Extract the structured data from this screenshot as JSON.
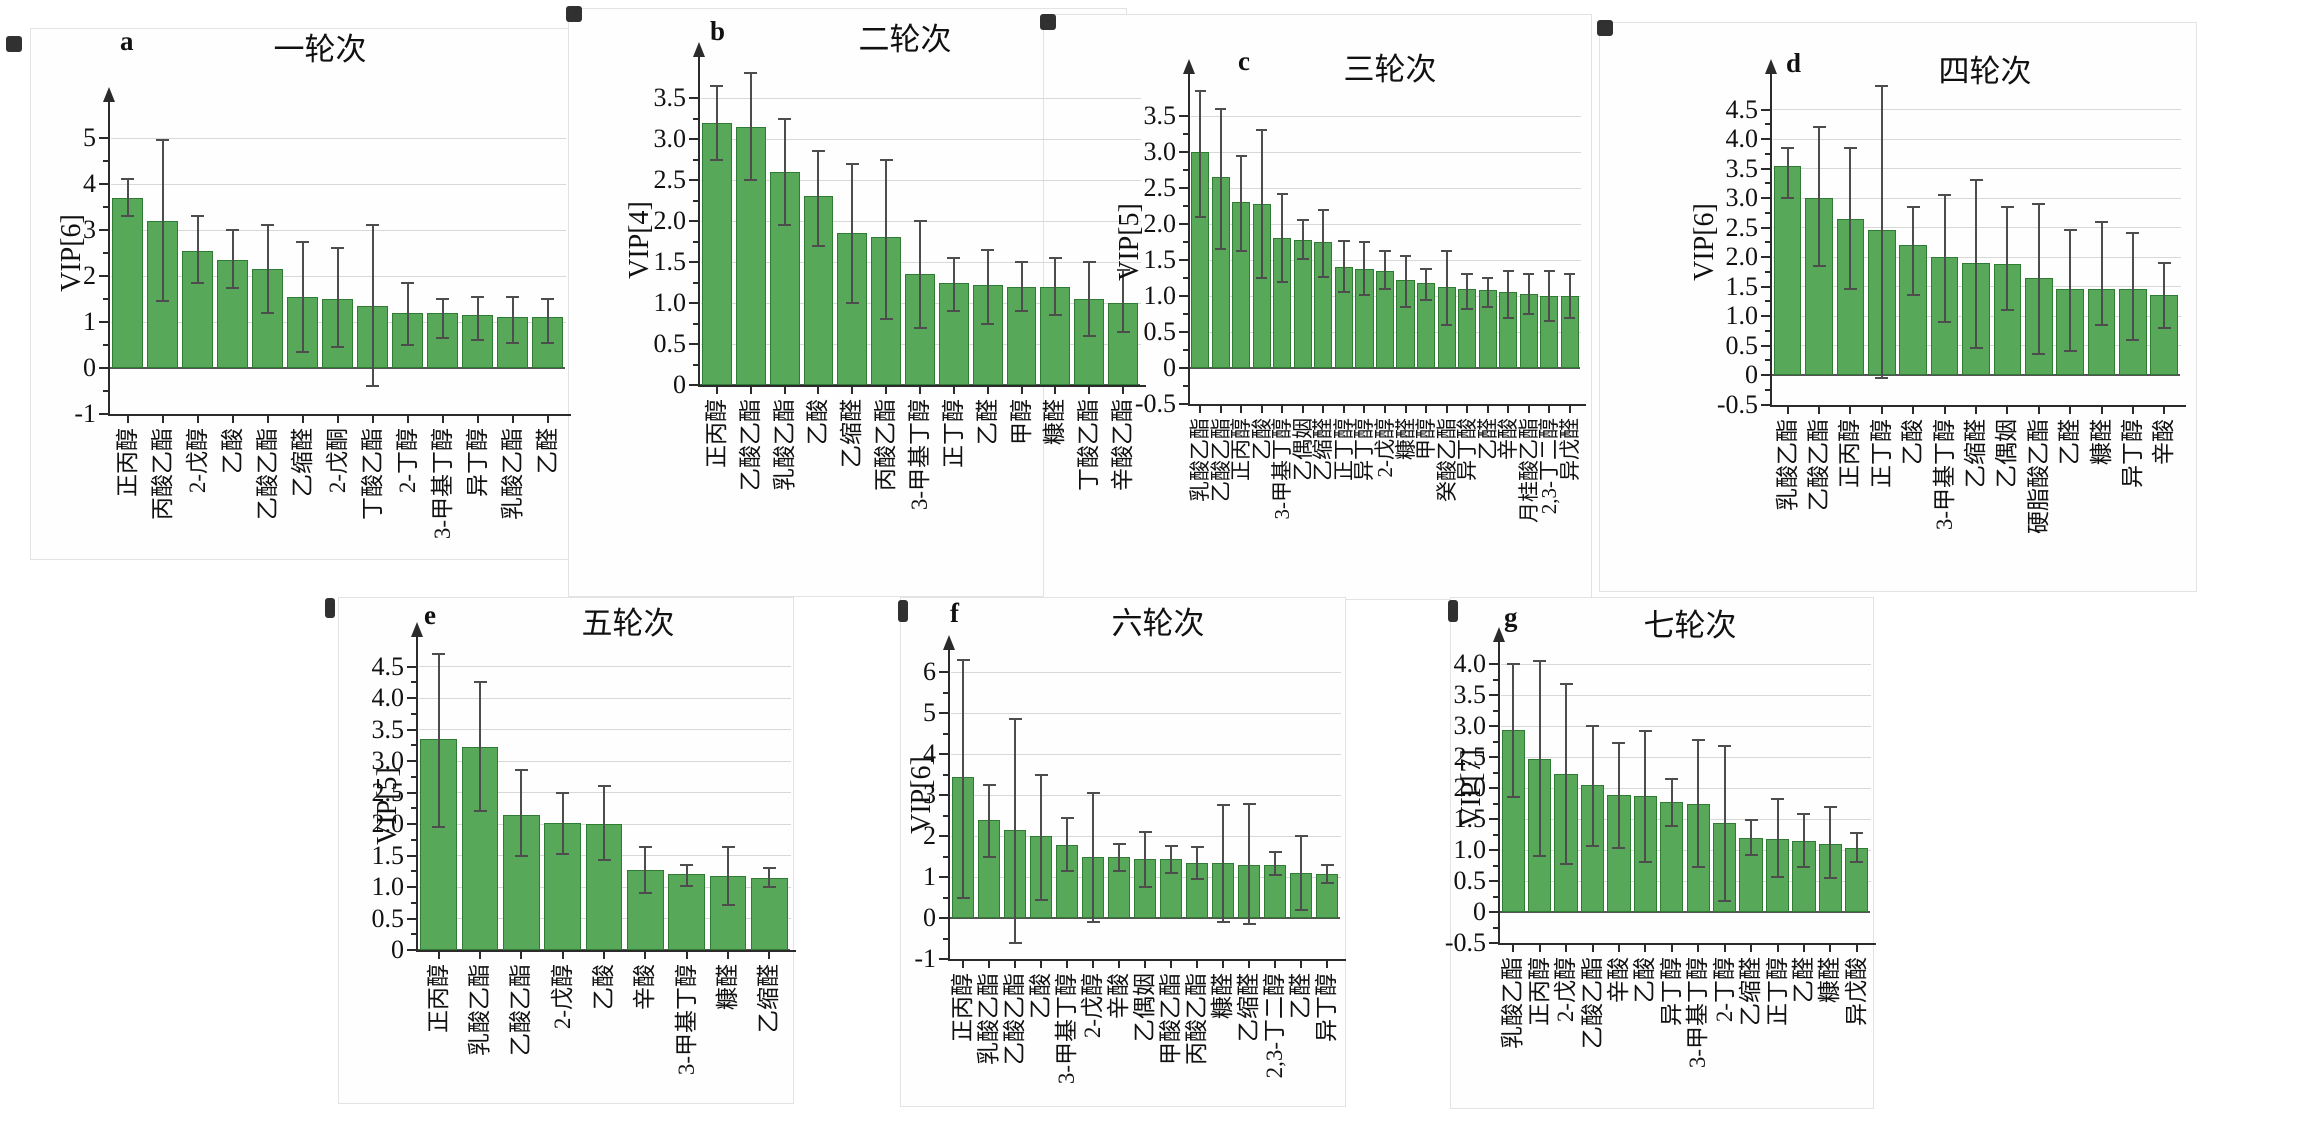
{
  "colors": {
    "bar_fill": "#58a85a",
    "bar_border": "#2f7b33",
    "error_bar": "#4d4d4d",
    "axis": "#2b2b2b",
    "gridline": "#d8d8d8",
    "zero_line": "#555555"
  },
  "chart_data": [
    {
      "type": "bar",
      "letter": "a",
      "title": "一轮次",
      "ylabel": "VIP[6]",
      "ylim": [
        -1,
        5
      ],
      "ytick_step": 1,
      "grid": true,
      "categories": [
        "正丙醇",
        "丙酸乙酯",
        "2-戊醇",
        "乙酸",
        "乙酸乙酯",
        "乙缩醛",
        "2-戊酮",
        "丁酸乙酯",
        "2-丁醇",
        "3-甲基丁醇",
        "异丁醇",
        "乳酸乙酯",
        "乙醛"
      ],
      "values": [
        3.7,
        3.2,
        2.55,
        2.35,
        2.15,
        1.55,
        1.5,
        1.35,
        1.2,
        1.2,
        1.15,
        1.1,
        1.1
      ],
      "error_low": [
        3.3,
        1.45,
        1.85,
        1.75,
        1.2,
        0.35,
        0.45,
        -0.4,
        0.5,
        0.65,
        0.6,
        0.55,
        0.55
      ],
      "error_high": [
        4.1,
        4.95,
        3.3,
        3.0,
        3.1,
        2.75,
        2.6,
        3.1,
        1.85,
        1.5,
        1.55,
        1.55,
        1.5
      ]
    },
    {
      "type": "bar",
      "letter": "b",
      "title": "二轮次",
      "ylabel": "VIP[4]",
      "ylim": [
        0,
        3.5
      ],
      "ytick_step": 0.5,
      "grid": true,
      "categories": [
        "正丙醇",
        "乙酸乙酯",
        "乳酸乙酯",
        "乙酸",
        "乙缩醛",
        "丙酸乙酯",
        "3-甲基丁醇",
        "正丁醇",
        "乙醛",
        "甲醇",
        "糠醛",
        "丁酸乙酯",
        "辛酸乙酯"
      ],
      "values": [
        3.2,
        3.15,
        2.6,
        2.3,
        1.85,
        1.8,
        1.35,
        1.25,
        1.22,
        1.2,
        1.2,
        1.05,
        1.0
      ],
      "error_low": [
        2.75,
        2.5,
        1.95,
        1.7,
        1.0,
        0.8,
        0.7,
        0.9,
        0.75,
        0.9,
        0.85,
        0.6,
        0.65
      ],
      "error_high": [
        3.65,
        3.8,
        3.25,
        2.85,
        2.7,
        2.75,
        2.0,
        1.55,
        1.65,
        1.5,
        1.55,
        1.5,
        1.4
      ]
    },
    {
      "type": "bar",
      "letter": "c",
      "title": "三轮次",
      "ylabel": "VIP[5]",
      "ylim": [
        -0.5,
        3.5
      ],
      "ytick_step": 0.5,
      "grid": true,
      "categories": [
        "乳酸乙酯",
        "乙酸乙酯",
        "正丙醇",
        "乙酸",
        "3-甲基丁醇",
        "乙偶姻",
        "乙缩醛",
        "正丁醇",
        "异丁醇",
        "2-戊醇",
        "糠醛",
        "甲醇",
        "癸酸乙酯",
        "异丁酸",
        "乙醛",
        "辛酸",
        "月桂酸乙酯",
        "2,3-丁二醇",
        "异戊醛"
      ],
      "values": [
        3.0,
        2.65,
        2.3,
        2.28,
        1.8,
        1.78,
        1.75,
        1.4,
        1.38,
        1.35,
        1.22,
        1.18,
        1.12,
        1.1,
        1.08,
        1.05,
        1.03,
        1.0,
        1.0
      ],
      "error_low": [
        2.1,
        1.65,
        1.62,
        1.25,
        1.2,
        1.52,
        1.27,
        1.05,
        1.02,
        1.1,
        0.85,
        0.95,
        0.6,
        0.82,
        0.85,
        0.7,
        0.75,
        0.65,
        0.7
      ],
      "error_high": [
        3.85,
        3.6,
        2.95,
        3.3,
        2.42,
        2.05,
        2.2,
        1.77,
        1.75,
        1.63,
        1.55,
        1.38,
        1.63,
        1.3,
        1.25,
        1.35,
        1.3,
        1.35,
        1.3
      ]
    },
    {
      "type": "bar",
      "letter": "d",
      "title": "四轮次",
      "ylabel": "VIP[6]",
      "ylim": [
        -0.5,
        4.5
      ],
      "ytick_step": 0.5,
      "grid": true,
      "categories": [
        "乳酸乙酯",
        "乙酸乙酯",
        "正丙醇",
        "正丁醇",
        "乙酸",
        "3-甲基丁醇",
        "乙缩醛",
        "乙偶姻",
        "硬脂酸乙酯",
        "乙醛",
        "糠醛",
        "异丁醇",
        "辛酸"
      ],
      "values": [
        3.55,
        3.0,
        2.65,
        2.45,
        2.2,
        2.0,
        1.9,
        1.88,
        1.65,
        1.45,
        1.45,
        1.45,
        1.35
      ],
      "error_low": [
        3.0,
        1.85,
        1.45,
        -0.05,
        1.35,
        0.9,
        0.45,
        1.1,
        0.35,
        0.4,
        0.85,
        0.6,
        0.8
      ],
      "error_high": [
        3.85,
        4.2,
        3.85,
        4.9,
        2.85,
        3.05,
        3.3,
        2.85,
        2.9,
        2.45,
        2.6,
        2.4,
        1.9
      ]
    },
    {
      "type": "bar",
      "letter": "e",
      "title": "五轮次",
      "ylabel": "VIP[5]",
      "ylim": [
        0,
        4.5
      ],
      "ytick_step": 0.5,
      "grid": true,
      "categories": [
        "正丙醇",
        "乳酸乙酯",
        "乙酸乙酯",
        "2-戊醇",
        "乙酸",
        "辛酸",
        "3-甲基丁醇",
        "糠醛",
        "乙缩醛"
      ],
      "values": [
        3.35,
        3.22,
        2.15,
        2.02,
        2.0,
        1.27,
        1.2,
        1.18,
        1.15
      ],
      "error_low": [
        1.95,
        2.2,
        1.5,
        1.52,
        1.43,
        0.9,
        1.02,
        0.72,
        1.0
      ],
      "error_high": [
        4.7,
        4.25,
        2.85,
        2.5,
        2.6,
        1.63,
        1.35,
        1.63,
        1.3
      ]
    },
    {
      "type": "bar",
      "letter": "f",
      "title": "六轮次",
      "ylabel": "VIP[6]",
      "ylim": [
        -1,
        6
      ],
      "ytick_step": 1,
      "grid": true,
      "categories": [
        "正丙醇",
        "乳酸乙酯",
        "乙酸乙酯",
        "乙酸",
        "3-甲基丁醇",
        "2-戊醇",
        "辛酸",
        "乙偶姻",
        "甲酸乙酯",
        "丙酸乙酯",
        "糠醛",
        "乙缩醛",
        "2,3-丁二醇",
        "乙醛",
        "异丁醇"
      ],
      "values": [
        3.45,
        2.4,
        2.15,
        2.0,
        1.78,
        1.5,
        1.48,
        1.43,
        1.45,
        1.35,
        1.35,
        1.3,
        1.3,
        1.1,
        1.07
      ],
      "error_low": [
        0.5,
        1.5,
        -0.6,
        0.45,
        1.15,
        -0.1,
        1.15,
        0.75,
        1.1,
        0.95,
        -0.1,
        -0.15,
        1.05,
        0.2,
        0.85
      ],
      "error_high": [
        6.3,
        3.25,
        4.85,
        3.5,
        2.45,
        3.05,
        1.8,
        2.1,
        1.75,
        1.72,
        2.75,
        2.78,
        1.6,
        2.0,
        1.3
      ]
    },
    {
      "type": "bar",
      "letter": "g",
      "title": "七轮次",
      "ylabel": "VIP[7]",
      "ylim": [
        -0.5,
        4
      ],
      "ytick_step": 0.5,
      "grid": true,
      "categories": [
        "乳酸乙酯",
        "正丙醇",
        "2-戊醇",
        "乙酸乙酯",
        "辛酸",
        "乙酸",
        "异丁醇",
        "3-甲基丁醇",
        "2-丁醇",
        "乙缩醛",
        "正丁醇",
        "乙醛",
        "糠醛",
        "异戊酸"
      ],
      "values": [
        2.93,
        2.47,
        2.23,
        2.05,
        1.88,
        1.87,
        1.77,
        1.75,
        1.43,
        1.2,
        1.18,
        1.15,
        1.1,
        1.03
      ],
      "error_low": [
        1.85,
        0.9,
        0.78,
        1.07,
        1.03,
        0.8,
        1.38,
        0.73,
        0.17,
        0.92,
        0.57,
        0.72,
        0.55,
        0.8
      ],
      "error_high": [
        4.0,
        4.05,
        3.68,
        3.0,
        2.73,
        2.92,
        2.15,
        2.78,
        2.67,
        1.48,
        1.82,
        1.58,
        1.7,
        1.27
      ]
    }
  ]
}
